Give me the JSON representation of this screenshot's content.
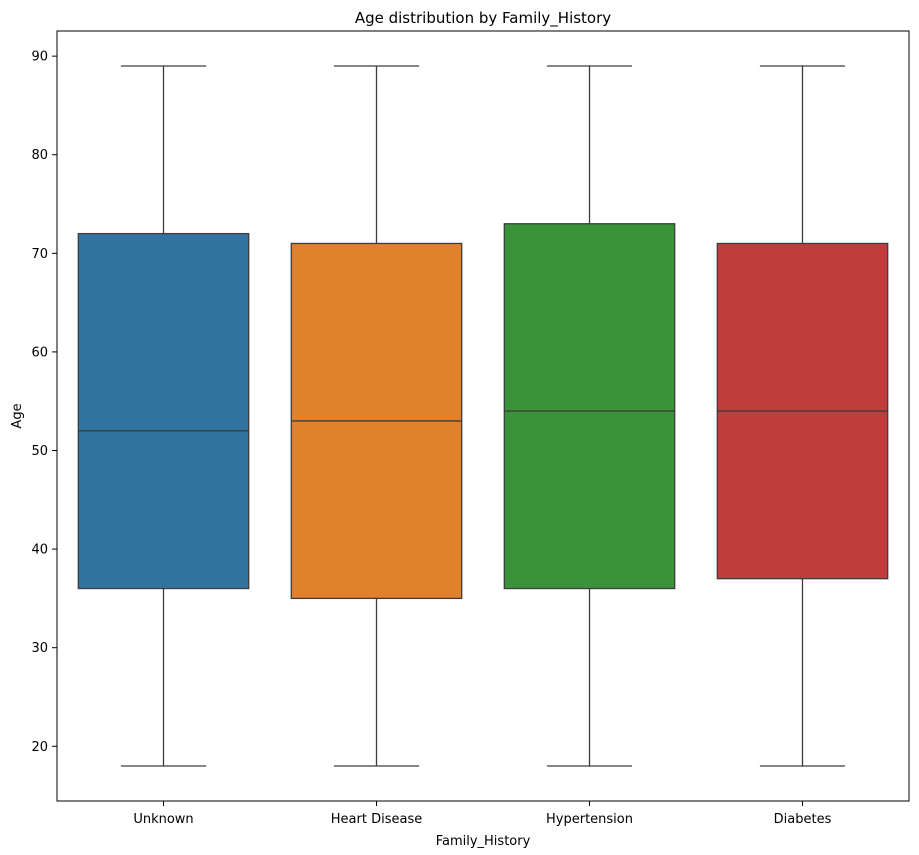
{
  "chart_data": {
    "type": "box",
    "title": "Age distribution by Family_History",
    "xlabel": "Family_History",
    "ylabel": "Age",
    "ylim": [
      14.45,
      92.55
    ],
    "yticks": [
      20,
      30,
      40,
      50,
      60,
      70,
      80,
      90
    ],
    "grid": false,
    "categories": [
      "Unknown",
      "Heart Disease",
      "Hypertension",
      "Diabetes"
    ],
    "boxes": [
      {
        "category": "Unknown",
        "min": 18,
        "q1": 36,
        "median": 52,
        "q3": 72,
        "max": 89,
        "color": "#3274a1"
      },
      {
        "category": "Heart Disease",
        "min": 18,
        "q1": 35,
        "median": 53,
        "q3": 71,
        "max": 89,
        "color": "#e1812c"
      },
      {
        "category": "Hypertension",
        "min": 18,
        "q1": 36,
        "median": 54,
        "q3": 73,
        "max": 89,
        "color": "#3a923a"
      },
      {
        "category": "Diabetes",
        "min": 18,
        "q1": 37,
        "median": 54,
        "q3": 71,
        "max": 89,
        "color": "#c03d3e"
      }
    ],
    "line_color": "#3d3d3d"
  }
}
